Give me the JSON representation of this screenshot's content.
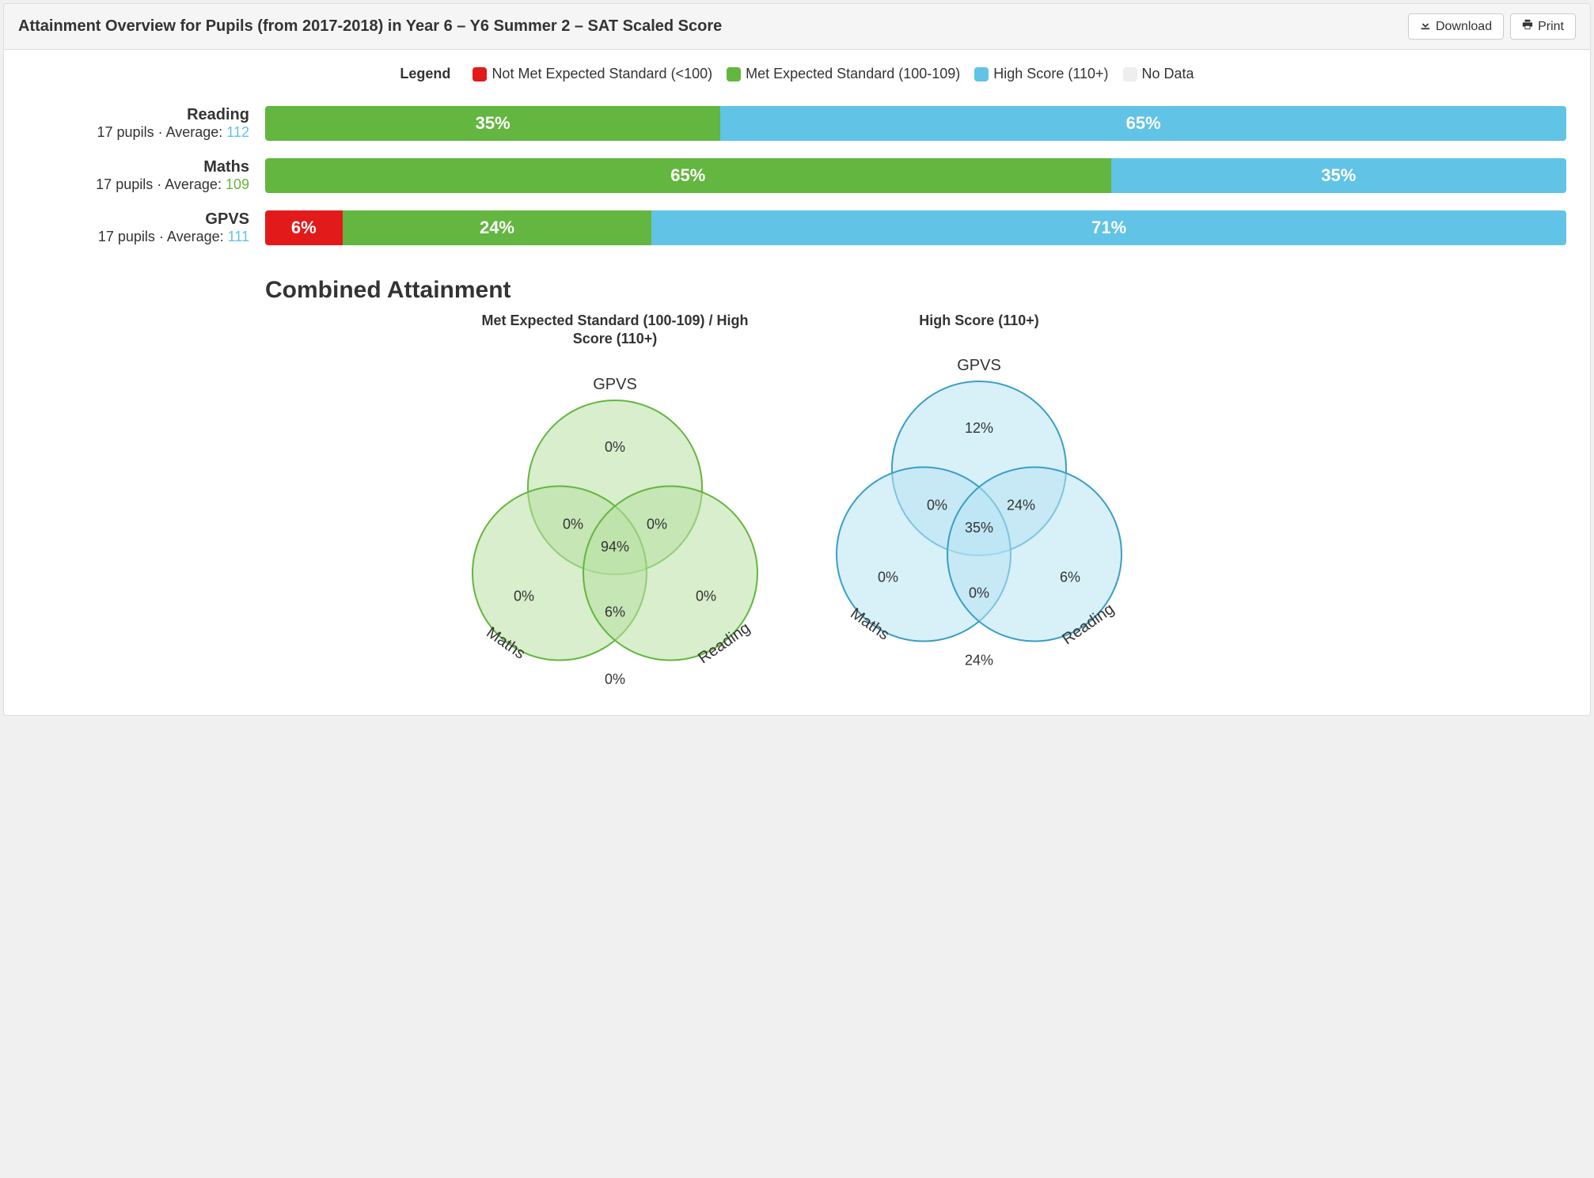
{
  "header": {
    "title": "Attainment Overview for Pupils (from 2017-2018) in Year 6 – Y6 Summer 2 – SAT Scaled Score",
    "download_label": "Download",
    "print_label": "Print"
  },
  "legend": {
    "title": "Legend",
    "items": [
      {
        "label": "Not Met Expected Standard (<100)",
        "color": "#e31a1a"
      },
      {
        "label": "Met Expected Standard (100-109)",
        "color": "#63b63f"
      },
      {
        "label": "High Score (110+)",
        "color": "#61c3e6"
      },
      {
        "label": "No Data",
        "color": "#eeeeee"
      }
    ]
  },
  "subjects": [
    {
      "name": "Reading",
      "meta_prefix": "17 pupils · Average: ",
      "average": "112",
      "average_color": "#61c3e6",
      "segments": [
        {
          "pct": 35,
          "label": "35%",
          "color": "#63b63f"
        },
        {
          "pct": 65,
          "label": "65%",
          "color": "#61c3e6"
        }
      ]
    },
    {
      "name": "Maths",
      "meta_prefix": "17 pupils · Average: ",
      "average": "109",
      "average_color": "#63b63f",
      "segments": [
        {
          "pct": 65,
          "label": "65%",
          "color": "#63b63f"
        },
        {
          "pct": 35,
          "label": "35%",
          "color": "#61c3e6"
        }
      ]
    },
    {
      "name": "GPVS",
      "meta_prefix": "17 pupils · Average: ",
      "average": "111",
      "average_color": "#61c3e6",
      "segments": [
        {
          "pct": 6,
          "label": "6%",
          "color": "#e31a1a"
        },
        {
          "pct": 24,
          "label": "24%",
          "color": "#63b63f"
        },
        {
          "pct": 71,
          "label": "71%",
          "color": "#61c3e6"
        }
      ]
    }
  ],
  "combined": {
    "section_title": "Combined Attainment",
    "venns": [
      {
        "title": "Met Expected Standard (100-109) / High Score (110+)",
        "fill": "#b8e0a3",
        "stroke": "#63b63f",
        "labels": {
          "top": "GPVS",
          "left": "Maths",
          "right": "Reading"
        },
        "values": {
          "top_only": "0%",
          "left_only": "0%",
          "right_only": "0%",
          "top_left": "0%",
          "top_right": "0%",
          "left_right": "6%",
          "center": "94%",
          "outside": "0%"
        }
      },
      {
        "title": "High Score (110+)",
        "fill": "#b8e4f3",
        "stroke": "#3a9ec6",
        "labels": {
          "top": "GPVS",
          "left": "Maths",
          "right": "Reading"
        },
        "values": {
          "top_only": "12%",
          "left_only": "0%",
          "right_only": "6%",
          "top_left": "0%",
          "top_right": "24%",
          "left_right": "0%",
          "center": "35%",
          "outside": "24%"
        }
      }
    ]
  }
}
